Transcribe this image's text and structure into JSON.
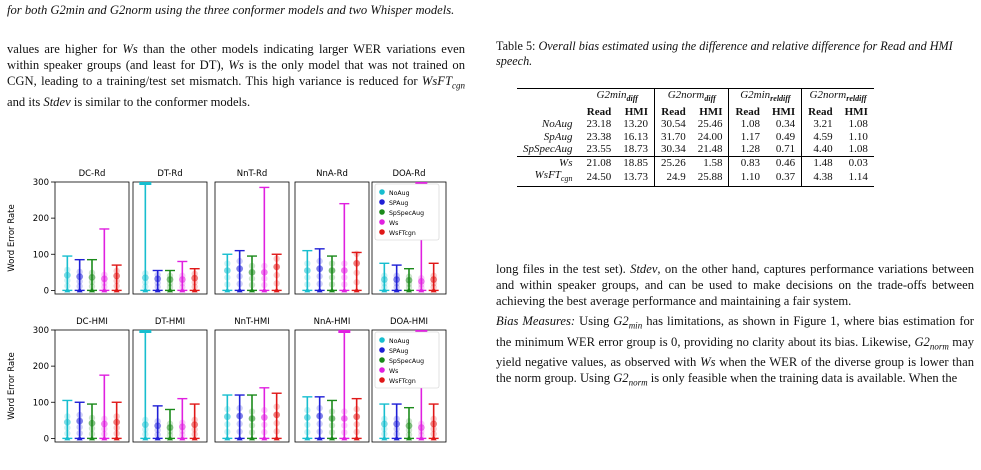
{
  "top_caption": "for both G2min and G2norm using the three conformer models and two Whisper models.",
  "left_paragraph": {
    "t1": "values are higher for ",
    "m1": "Ws",
    "t2": " than the other models indicating larger WER variations even within speaker groups (and least for DT), ",
    "m2": "Ws",
    "t3": " is the only model that was not trained on CGN, leading to a training/test set mismatch. This high variance is reduced for ",
    "m3": "WsFT",
    "m3sub": "cgn",
    "t4": " and its ",
    "m4": "Stdev",
    "t5": " is similar to the conformer models."
  },
  "table": {
    "caption_label": "Table 5: ",
    "caption_text": "Overall bias estimated using the difference and relative difference for Read and HMI speech.",
    "groups": [
      "G2min",
      "G2norm",
      "G2min",
      "G2norm"
    ],
    "group_subs": [
      "diff",
      "diff",
      "reldiff",
      "reldiff"
    ],
    "subheaders": [
      "Read",
      "HMI",
      "Read",
      "HMI",
      "Read",
      "HMI",
      "Read",
      "HMI"
    ],
    "rows": [
      {
        "label": "NoAug",
        "values": [
          "23.18",
          "13.20",
          "30.54",
          "25.46",
          "1.08",
          "0.34",
          "3.21",
          "1.08"
        ]
      },
      {
        "label": "SpAug",
        "values": [
          "23.38",
          "16.13",
          "31.70",
          "24.00",
          "1.17",
          "0.49",
          "4.59",
          "1.10"
        ]
      },
      {
        "label": "SpSpecAug",
        "values": [
          "23.55",
          "18.73",
          "30.34",
          "21.48",
          "1.28",
          "0.71",
          "4.40",
          "1.08"
        ]
      },
      {
        "label": "Ws",
        "values": [
          "21.08",
          "18.85",
          "25.26",
          "1.58",
          "0.83",
          "0.46",
          "1.48",
          "0.03"
        ]
      },
      {
        "label": "WsFT",
        "label_sub": "cgn",
        "values": [
          "24.50",
          "13.73",
          "24.9",
          "25.88",
          "1.10",
          "0.37",
          "4.38",
          "1.14"
        ]
      }
    ]
  },
  "right_paragraph": {
    "p1a": "long files in the test set). ",
    "p1m": "Stdev",
    "p1b": ", on the other hand, captures performance variations between and within speaker groups, and can be used to make decisions on the trade-offs between achieving the best average performance and maintaining a fair system.",
    "p2head": "Bias Measures:",
    "p2a": " Using ",
    "p2m1": "G2",
    "p2m1sub": "min",
    "p2b": " has limitations, as shown in Figure 1, where bias estimation for the minimum WER error group is 0, providing no clarity about its bias. Likewise, ",
    "p2m2": "G2",
    "p2m2sub": "norm",
    "p2c": " may yield negative values, as observed with ",
    "p2m3": "Ws",
    "p2d": " when the WER of the diverse group is lower than the norm group. Using ",
    "p2m4": "G2",
    "p2m4sub": "norm",
    "p2e": " is only feasible when the training data is available. When the"
  },
  "chart_data": {
    "type": "box",
    "ylabel": "Word Error Rate",
    "ylim": [
      -10,
      300
    ],
    "yticks": [
      0,
      100,
      200,
      300
    ],
    "legend": {
      "placement": "right panel",
      "entries": [
        {
          "name": "NoAug",
          "color": "#17becf"
        },
        {
          "name": "SPAug",
          "color": "#1f1fd6"
        },
        {
          "name": "SpSpecAug",
          "color": "#1b8a1b"
        },
        {
          "name": "Ws",
          "color": "#e020e0"
        },
        {
          "name": "WsFTcgn",
          "color": "#e01818"
        }
      ]
    },
    "rows": [
      {
        "panels": [
          {
            "title": "DC-Rd",
            "max": [
              95,
              85,
              85,
              170,
              70
            ],
            "median": [
              42,
              38,
              36,
              32,
              40
            ]
          },
          {
            "title": "DT-Rd",
            "max": [
              300,
              55,
              55,
              80,
              60
            ],
            "median": [
              35,
              32,
              30,
              30,
              34
            ]
          },
          {
            "title": "NnT-Rd",
            "max": [
              100,
              110,
              95,
              285,
              100
            ],
            "median": [
              55,
              60,
              50,
              50,
              65
            ]
          },
          {
            "title": "NnA-Rd",
            "max": [
              110,
              115,
              95,
              240,
              105
            ],
            "median": [
              55,
              60,
              55,
              55,
              75
            ]
          },
          {
            "title": "DOA-Rd",
            "max": [
              75,
              70,
              60,
              300,
              75
            ],
            "median": [
              30,
              30,
              28,
              25,
              30
            ]
          }
        ]
      },
      {
        "panels": [
          {
            "title": "DC-HMI",
            "max": [
              105,
              100,
              95,
              175,
              100
            ],
            "median": [
              45,
              48,
              42,
              40,
              45
            ]
          },
          {
            "title": "DT-HMI",
            "max": [
              300,
              90,
              80,
              110,
              95
            ],
            "median": [
              38,
              35,
              30,
              32,
              38
            ]
          },
          {
            "title": "NnT-HMI",
            "max": [
              120,
              120,
              120,
              140,
              125
            ],
            "median": [
              60,
              62,
              55,
              58,
              65
            ]
          },
          {
            "title": "NnA-HMI",
            "max": [
              115,
              115,
              105,
              300,
              110
            ],
            "median": [
              58,
              62,
              55,
              55,
              60
            ]
          },
          {
            "title": "DOA-HMI",
            "max": [
              95,
              95,
              85,
              300,
              95
            ],
            "median": [
              40,
              40,
              35,
              30,
              40
            ]
          }
        ]
      }
    ]
  }
}
